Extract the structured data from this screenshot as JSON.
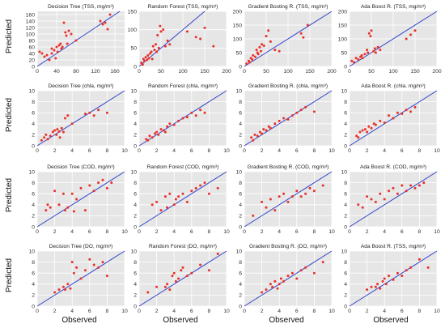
{
  "figure": {
    "ylabel": "Predicted",
    "xlabel": "Observed",
    "colors": {
      "panel_bg": "#e6e6e6",
      "grid": "#ffffff",
      "identity_line": "#3344cc",
      "point": "#e8312a"
    }
  },
  "chart_data": [
    {
      "type": "scatter",
      "title": "Decision Tree (TSS, mg/m³)",
      "xlim": [
        0,
        180
      ],
      "ylim": [
        0,
        170
      ],
      "xticks": [
        0,
        40,
        80,
        120,
        160
      ],
      "yticks": [
        0,
        20,
        40,
        60,
        80,
        100,
        120,
        140,
        160
      ],
      "identity_line": true,
      "x": [
        5,
        10,
        15,
        20,
        25,
        30,
        30,
        35,
        38,
        40,
        42,
        45,
        48,
        50,
        52,
        55,
        58,
        60,
        62,
        65,
        70,
        80,
        130,
        135,
        140,
        145,
        150
      ],
      "y": [
        45,
        40,
        30,
        35,
        20,
        55,
        40,
        50,
        25,
        60,
        45,
        65,
        70,
        55,
        60,
        135,
        105,
        95,
        70,
        110,
        100,
        80,
        140,
        130,
        135,
        115,
        160
      ]
    },
    {
      "type": "scatter",
      "title": "Random Forest (TSS, mg/m³)",
      "xlim": [
        0,
        200
      ],
      "ylim": [
        0,
        150
      ],
      "xticks": [
        0,
        50,
        100,
        150,
        200
      ],
      "yticks": [
        0,
        50,
        100,
        150
      ],
      "identity_line": true,
      "x": [
        5,
        8,
        10,
        12,
        15,
        18,
        20,
        22,
        25,
        28,
        30,
        32,
        35,
        38,
        40,
        42,
        45,
        48,
        50,
        55,
        60,
        65,
        70,
        110,
        130,
        140,
        150,
        170
      ],
      "y": [
        10,
        5,
        20,
        15,
        25,
        18,
        30,
        22,
        35,
        40,
        20,
        55,
        45,
        60,
        40,
        85,
        50,
        110,
        95,
        100,
        55,
        70,
        60,
        95,
        80,
        75,
        105,
        55
      ]
    },
    {
      "type": "scatter",
      "title": "Gradient Bosting R. (TSS, mg/m³)",
      "xlim": [
        0,
        200
      ],
      "ylim": [
        0,
        200
      ],
      "xticks": [
        0,
        50,
        100,
        150,
        200
      ],
      "yticks": [
        0,
        50,
        100,
        150,
        200
      ],
      "identity_line": true,
      "x": [
        5,
        10,
        12,
        15,
        18,
        20,
        25,
        28,
        30,
        32,
        35,
        38,
        40,
        45,
        50,
        55,
        60,
        70,
        80,
        130,
        135,
        145
      ],
      "y": [
        10,
        20,
        15,
        30,
        25,
        40,
        35,
        60,
        50,
        45,
        70,
        55,
        80,
        75,
        110,
        130,
        90,
        60,
        55,
        120,
        105,
        150
      ]
    },
    {
      "type": "scatter",
      "title": "Ada Boost R. (TSS, mg/m³)",
      "xlim": [
        0,
        200
      ],
      "ylim": [
        0,
        200
      ],
      "xticks": [
        0,
        50,
        100,
        150,
        200
      ],
      "yticks": [
        0,
        50,
        100,
        150,
        200
      ],
      "identity_line": true,
      "x": [
        5,
        10,
        15,
        20,
        25,
        28,
        30,
        35,
        40,
        42,
        45,
        48,
        50,
        55,
        58,
        60,
        65,
        70,
        130,
        140,
        150
      ],
      "y": [
        20,
        15,
        30,
        25,
        35,
        40,
        30,
        45,
        60,
        50,
        120,
        110,
        130,
        55,
        65,
        50,
        70,
        60,
        100,
        115,
        130
      ]
    },
    {
      "type": "scatter",
      "title": "Decision Tree (chla, mg/m³)",
      "xlim": [
        0,
        10
      ],
      "ylim": [
        0,
        10
      ],
      "xticks": [
        0,
        2,
        4,
        6,
        8,
        10
      ],
      "yticks": [
        0,
        2,
        4,
        6,
        8,
        10
      ],
      "identity_line": true,
      "x": [
        0.5,
        0.8,
        1.0,
        1.2,
        1.5,
        1.8,
        2.0,
        2.2,
        2.3,
        2.5,
        2.6,
        2.8,
        3.0,
        3.2,
        3.5,
        4.0,
        5.5,
        6.0,
        6.5,
        7.0,
        8.0
      ],
      "y": [
        1.0,
        1.5,
        2.0,
        1.2,
        1.8,
        2.5,
        2.8,
        2.0,
        3.0,
        2.6,
        1.5,
        3.2,
        2.5,
        5.0,
        5.5,
        4.0,
        5.8,
        6.0,
        5.5,
        6.5,
        6.0
      ]
    },
    {
      "type": "scatter",
      "title": "Random Forest (chla, mg/m³)",
      "xlim": [
        0,
        10
      ],
      "ylim": [
        0,
        10
      ],
      "xticks": [
        0,
        2,
        4,
        6,
        8,
        10
      ],
      "yticks": [
        0,
        2,
        4,
        6,
        8,
        10
      ],
      "identity_line": true,
      "x": [
        0.8,
        1.0,
        1.2,
        1.5,
        1.8,
        2.0,
        2.2,
        2.5,
        2.8,
        3.0,
        3.2,
        3.5,
        4.0,
        4.5,
        5.0,
        5.5,
        6.0,
        6.5,
        7.0,
        7.5
      ],
      "y": [
        1.2,
        1.0,
        1.8,
        1.5,
        2.2,
        2.5,
        2.0,
        3.0,
        2.8,
        2.5,
        3.5,
        4.0,
        3.8,
        4.5,
        5.0,
        5.2,
        6.0,
        5.5,
        6.5,
        6.0
      ]
    },
    {
      "type": "scatter",
      "title": "Gradient Bosting R. (chla, mg/m³)",
      "xlim": [
        0,
        10
      ],
      "ylim": [
        0,
        10
      ],
      "xticks": [
        0,
        2,
        4,
        6,
        8,
        10
      ],
      "yticks": [
        0,
        2,
        4,
        6,
        8,
        10
      ],
      "identity_line": true,
      "x": [
        0.8,
        1.0,
        1.2,
        1.5,
        1.8,
        2.0,
        2.2,
        2.5,
        2.8,
        3.0,
        3.5,
        4.0,
        4.5,
        5.0,
        5.5,
        6.0,
        6.5,
        7.0,
        8.0
      ],
      "y": [
        1.5,
        1.0,
        2.0,
        1.8,
        2.5,
        2.2,
        3.0,
        2.8,
        3.5,
        3.2,
        4.0,
        4.5,
        5.0,
        4.8,
        5.5,
        6.0,
        6.5,
        7.0,
        6.2
      ]
    },
    {
      "type": "scatter",
      "title": "Ada Boost R. (chla. mg/m³)",
      "xlim": [
        0,
        10
      ],
      "ylim": [
        0,
        10
      ],
      "xticks": [
        0,
        2,
        4,
        6,
        8,
        10
      ],
      "yticks": [
        0,
        2,
        4,
        6,
        8,
        10
      ],
      "identity_line": true,
      "x": [
        0.8,
        1.0,
        1.2,
        1.5,
        1.8,
        2.0,
        2.2,
        2.5,
        2.8,
        3.0,
        3.5,
        4.0,
        4.5,
        5.0,
        5.5,
        6.0,
        6.5,
        7.0,
        7.5
      ],
      "y": [
        1.8,
        1.5,
        2.5,
        2.8,
        3.0,
        2.5,
        3.5,
        3.2,
        4.0,
        3.8,
        4.5,
        4.2,
        5.5,
        5.0,
        6.0,
        5.8,
        6.5,
        6.2,
        7.0
      ]
    },
    {
      "type": "scatter",
      "title": "Decision Tree (COD, mg/m³)",
      "xlim": [
        0,
        10
      ],
      "ylim": [
        0,
        10
      ],
      "xticks": [
        0,
        2,
        4,
        6,
        8,
        10
      ],
      "yticks": [
        0,
        2,
        4,
        6,
        8,
        10
      ],
      "identity_line": true,
      "x": [
        1.0,
        1.2,
        1.5,
        2.0,
        2.5,
        3.0,
        3.2,
        3.5,
        4.0,
        4.2,
        4.5,
        5.0,
        5.5,
        6.0,
        6.5,
        7.0,
        7.5,
        8.0,
        8.5
      ],
      "y": [
        3.0,
        4.0,
        3.5,
        6.5,
        4.0,
        6.0,
        3.0,
        3.5,
        6.0,
        2.8,
        5.0,
        7.0,
        3.0,
        7.5,
        6.5,
        8.0,
        8.5,
        7.0,
        8.0
      ]
    },
    {
      "type": "scatter",
      "title": "Random Forest (COD, mg/m³)",
      "xlim": [
        0,
        10
      ],
      "ylim": [
        0,
        10
      ],
      "xticks": [
        0,
        2,
        4,
        6,
        8,
        10
      ],
      "yticks": [
        0,
        2,
        4,
        6,
        8,
        10
      ],
      "identity_line": true,
      "x": [
        1.5,
        2.0,
        2.5,
        3.0,
        3.2,
        3.5,
        4.0,
        4.2,
        4.5,
        5.0,
        5.5,
        6.0,
        6.5,
        7.0,
        7.5,
        8.0,
        9.0
      ],
      "y": [
        4.0,
        4.5,
        3.0,
        5.5,
        3.5,
        6.0,
        4.0,
        5.0,
        5.5,
        6.0,
        4.5,
        6.5,
        7.0,
        7.5,
        8.0,
        6.0,
        7.0
      ]
    },
    {
      "type": "scatter",
      "title": "Gradient Bosting R. (COD, mg/m³)",
      "xlim": [
        0,
        10
      ],
      "ylim": [
        0,
        10
      ],
      "xticks": [
        0,
        2,
        4,
        6,
        8,
        10
      ],
      "yticks": [
        0,
        2,
        4,
        6,
        8,
        10
      ],
      "identity_line": true,
      "x": [
        1.0,
        2.0,
        2.5,
        3.0,
        3.5,
        4.0,
        4.5,
        5.0,
        5.5,
        6.0,
        6.5,
        7.0,
        7.5,
        8.0,
        9.0
      ],
      "y": [
        2.0,
        4.5,
        3.5,
        5.0,
        3.0,
        5.5,
        6.0,
        4.5,
        5.5,
        6.5,
        5.5,
        6.0,
        7.0,
        6.5,
        7.5
      ]
    },
    {
      "type": "scatter",
      "title": "Ada Boost R. (COD, mg/m³)",
      "xlim": [
        0,
        10
      ],
      "ylim": [
        0,
        10
      ],
      "xticks": [
        0,
        2,
        4,
        6,
        8,
        10
      ],
      "yticks": [
        0,
        2,
        4,
        6,
        8,
        10
      ],
      "identity_line": true,
      "x": [
        1.0,
        1.5,
        2.0,
        2.5,
        3.0,
        3.5,
        4.0,
        4.5,
        5.0,
        5.5,
        6.0,
        6.5,
        7.0,
        7.5,
        8.0,
        8.5
      ],
      "y": [
        4.0,
        3.5,
        5.5,
        5.0,
        4.5,
        6.0,
        5.0,
        6.5,
        7.0,
        6.0,
        7.5,
        6.5,
        7.5,
        7.0,
        7.5,
        8.0
      ]
    },
    {
      "type": "scatter",
      "title": "Decision Tree (DO, mg/m³)",
      "xlim": [
        0,
        10
      ],
      "ylim": [
        0,
        10
      ],
      "xticks": [
        0,
        2,
        4,
        6,
        8,
        10
      ],
      "yticks": [
        0,
        2,
        4,
        6,
        8,
        10
      ],
      "identity_line": true,
      "x": [
        2.0,
        2.5,
        3.0,
        3.2,
        3.5,
        3.8,
        4.0,
        4.2,
        4.5,
        5.0,
        5.5,
        6.0,
        6.5,
        7.0,
        7.5,
        8.0
      ],
      "y": [
        2.5,
        3.0,
        3.5,
        3.0,
        4.0,
        3.2,
        8.0,
        6.0,
        7.0,
        5.0,
        6.5,
        8.5,
        7.5,
        7.0,
        8.0,
        5.5
      ]
    },
    {
      "type": "scatter",
      "title": "Random Forest (DO, mg/m³)",
      "xlim": [
        0,
        10
      ],
      "ylim": [
        0,
        10
      ],
      "xticks": [
        0,
        2,
        4,
        6,
        8,
        10
      ],
      "yticks": [
        0,
        2,
        4,
        6,
        8,
        10
      ],
      "identity_line": true,
      "x": [
        1.0,
        2.0,
        3.0,
        3.2,
        3.5,
        3.8,
        4.0,
        4.2,
        4.5,
        4.8,
        5.0,
        5.5,
        6.0,
        7.0,
        8.0,
        9.0
      ],
      "y": [
        2.5,
        3.5,
        3.5,
        4.0,
        3.0,
        5.5,
        6.0,
        4.5,
        5.0,
        6.5,
        7.0,
        5.5,
        6.0,
        7.5,
        6.5,
        9.5
      ]
    },
    {
      "type": "scatter",
      "title": "Gradient Bosting R. (DO, mg/m³)",
      "xlim": [
        0,
        10
      ],
      "ylim": [
        0,
        10
      ],
      "xticks": [
        0,
        2,
        4,
        6,
        8,
        10
      ],
      "yticks": [
        0,
        2,
        4,
        6,
        8,
        10
      ],
      "identity_line": true,
      "x": [
        2.0,
        2.5,
        3.0,
        3.2,
        3.5,
        3.8,
        4.0,
        4.2,
        4.5,
        5.0,
        5.5,
        6.0,
        6.5,
        7.0,
        8.0,
        9.0
      ],
      "y": [
        2.5,
        3.0,
        4.0,
        3.5,
        4.5,
        3.2,
        4.0,
        5.0,
        4.5,
        5.5,
        6.0,
        5.0,
        6.5,
        7.0,
        6.0,
        8.0
      ]
    },
    {
      "type": "scatter",
      "title": "Ada Boost R. (TSS, mg/m³)",
      "xlim": [
        0,
        10
      ],
      "ylim": [
        0,
        10
      ],
      "xticks": [
        0,
        2,
        4,
        6,
        8,
        10
      ],
      "yticks": [
        0,
        2,
        4,
        6,
        8,
        10
      ],
      "identity_line": true,
      "x": [
        2.0,
        2.5,
        3.0,
        3.2,
        3.5,
        3.8,
        4.0,
        4.2,
        4.5,
        5.0,
        5.5,
        6.0,
        6.5,
        7.0,
        8.0,
        9.0
      ],
      "y": [
        3.0,
        3.5,
        3.5,
        4.0,
        3.2,
        4.5,
        5.0,
        4.0,
        5.5,
        4.8,
        6.0,
        5.5,
        6.5,
        7.0,
        8.5,
        7.0
      ]
    }
  ]
}
